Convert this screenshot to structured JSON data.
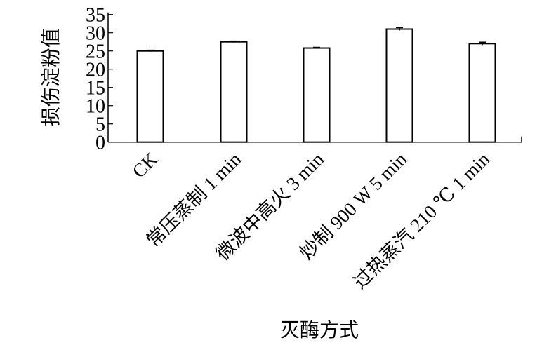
{
  "chart_data": {
    "type": "bar",
    "title": "",
    "xlabel": "灭酶方式",
    "ylabel": "损伤淀粉值",
    "ylim": [
      0,
      35
    ],
    "yticks": [
      0,
      5,
      10,
      15,
      20,
      25,
      30,
      35
    ],
    "grid": false,
    "categories": [
      "CK",
      "常压蒸制 1 min",
      "微波中高火 3 min",
      "炒制 900 W 5 min",
      "过热蒸汽 210 ℃ 1 min"
    ],
    "values": [
      25.0,
      27.5,
      25.8,
      31.0,
      27.0
    ],
    "errors": [
      0.2,
      0.2,
      0.2,
      0.4,
      0.4
    ],
    "bar_fill": "#ffffff",
    "bar_stroke": "#000000"
  }
}
